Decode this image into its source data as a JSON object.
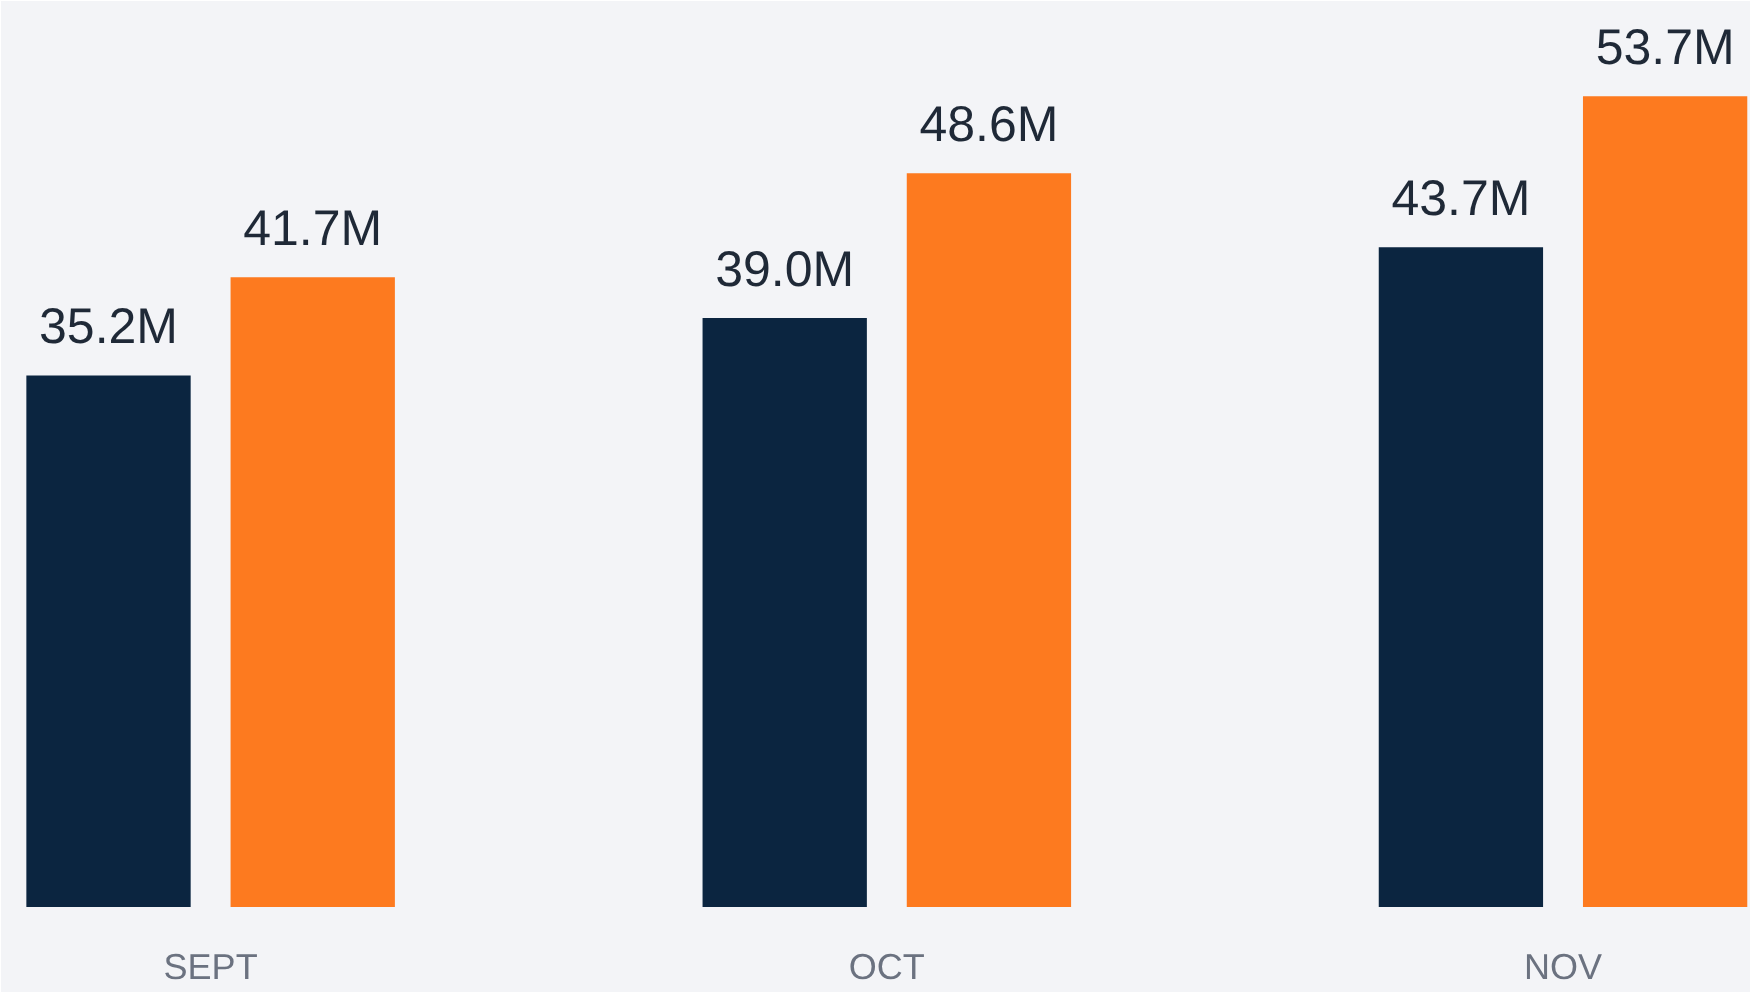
{
  "chart_data": {
    "type": "bar",
    "categories": [
      "SEPT",
      "OCT",
      "NOV"
    ],
    "series": [
      {
        "color": "#0b2540",
        "values": [
          35.2,
          39.0,
          43.7
        ],
        "value_labels": [
          "35.2M",
          "39.0M",
          "43.7M"
        ]
      },
      {
        "color": "#fd7a1f",
        "values": [
          41.7,
          48.6,
          53.7
        ],
        "value_labels": [
          "41.7M",
          "48.6M",
          "53.7M"
        ]
      }
    ]
  }
}
